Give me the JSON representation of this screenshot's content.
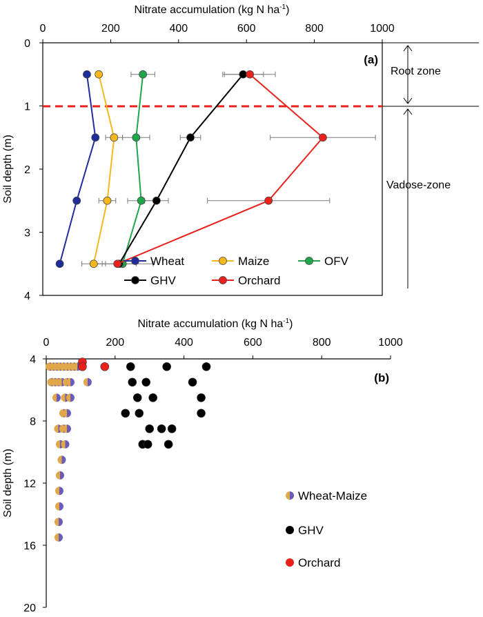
{
  "chart_data": [
    {
      "type": "line",
      "panel_label": "(a)",
      "xlabel_main": "Nitrate accumulation  (kg N ha",
      "xlabel_sup": "-1",
      "xlabel_end": ")",
      "ylabel": "Soil depth (m)",
      "xlim": [
        0,
        1000
      ],
      "ylim": [
        0,
        4
      ],
      "y_inverted": true,
      "x_axis_position": "top",
      "x_ticks": [
        "0",
        "200",
        "400",
        "600",
        "800",
        "1000"
      ],
      "y_ticks": [
        "0",
        "1",
        "2",
        "3",
        "4"
      ],
      "root_zone_boundary": 1,
      "zone_labels": {
        "root_zone": "Root zone",
        "vadose_zone": "Vadose-zone"
      },
      "legend_placement": "bottom-right",
      "series": [
        {
          "name": "Wheat",
          "color": "#1f2d9b",
          "depth": [
            0.5,
            1.5,
            2.5,
            3.5
          ],
          "values": [
            130,
            155,
            100,
            50
          ]
        },
        {
          "name": "Maize",
          "color": "#f5b81c",
          "depth": [
            0.5,
            1.5,
            2.5,
            3.5
          ],
          "values": [
            165,
            210,
            190,
            150
          ],
          "error": [
            0,
            25,
            25,
            35
          ]
        },
        {
          "name": "OFV",
          "color": "#1fa64a",
          "depth": [
            0.5,
            1.5,
            2.5,
            3.5
          ],
          "values": [
            295,
            275,
            290,
            235
          ],
          "error": [
            35,
            40,
            40,
            90
          ]
        },
        {
          "name": "GHV",
          "color": "#000000",
          "depth": [
            0.5,
            1.5,
            2.5,
            3.5
          ],
          "values": [
            590,
            435,
            335,
            225
          ],
          "error": [
            60,
            30,
            35,
            50
          ]
        },
        {
          "name": "Orchard",
          "color": "#e8211d",
          "depth": [
            0.5,
            1.5,
            2.5,
            3.5
          ],
          "values": [
            610,
            825,
            665,
            220
          ],
          "error": [
            75,
            155,
            180,
            0
          ]
        }
      ]
    },
    {
      "type": "scatter",
      "panel_label": "(b)",
      "xlabel_main": "Nitrate accumulation  (kg N ha",
      "xlabel_sup": "-1",
      "xlabel_end": ")",
      "ylabel": "Soil depth (m)",
      "xlim": [
        0,
        1000
      ],
      "ylim": [
        4,
        20
      ],
      "y_inverted": true,
      "x_axis_position": "top",
      "x_ticks": [
        "0",
        "200",
        "400",
        "600",
        "800",
        "1000"
      ],
      "y_ticks": [
        "4",
        "8",
        "12",
        "16",
        "20"
      ],
      "legend_placement": "right",
      "series": [
        {
          "name": "Wheat-Maize",
          "color": "#e0a84a",
          "color2": "#6a5cb8",
          "points": [
            [
              10,
              4.5
            ],
            [
              20,
              4.5
            ],
            [
              30,
              4.5
            ],
            [
              40,
              4.5
            ],
            [
              50,
              4.5
            ],
            [
              60,
              4.5
            ],
            [
              70,
              4.5
            ],
            [
              80,
              4.5
            ],
            [
              90,
              4.5
            ],
            [
              15,
              5.5
            ],
            [
              25,
              5.5
            ],
            [
              35,
              5.5
            ],
            [
              45,
              5.5
            ],
            [
              60,
              5.5
            ],
            [
              70,
              5.5
            ],
            [
              120,
              5.5
            ],
            [
              30,
              6.5
            ],
            [
              55,
              6.5
            ],
            [
              70,
              6.5
            ],
            [
              50,
              7.5
            ],
            [
              60,
              7.5
            ],
            [
              35,
              8.5
            ],
            [
              50,
              8.5
            ],
            [
              60,
              8.5
            ],
            [
              40,
              9.5
            ],
            [
              55,
              9.5
            ],
            [
              45,
              10.5
            ],
            [
              40,
              11.5
            ],
            [
              38,
              12.5
            ],
            [
              38,
              13.5
            ],
            [
              36,
              14.5
            ],
            [
              36,
              15.5
            ]
          ]
        },
        {
          "name": "GHV",
          "color": "#000000",
          "points": [
            [
              245,
              4.5
            ],
            [
              350,
              4.5
            ],
            [
              465,
              4.5
            ],
            [
              250,
              5.5
            ],
            [
              290,
              5.5
            ],
            [
              425,
              5.5
            ],
            [
              265,
              6.5
            ],
            [
              310,
              6.5
            ],
            [
              450,
              6.5
            ],
            [
              230,
              7.5
            ],
            [
              270,
              7.5
            ],
            [
              450,
              7.5
            ],
            [
              300,
              8.5
            ],
            [
              335,
              8.5
            ],
            [
              365,
              8.5
            ],
            [
              280,
              9.5
            ],
            [
              295,
              9.5
            ],
            [
              355,
              9.5
            ]
          ]
        },
        {
          "name": "Orchard",
          "color": "#e8211d",
          "points": [
            [
              105,
              4.2
            ],
            [
              105,
              4.5
            ],
            [
              170,
              4.5
            ]
          ]
        }
      ]
    }
  ]
}
